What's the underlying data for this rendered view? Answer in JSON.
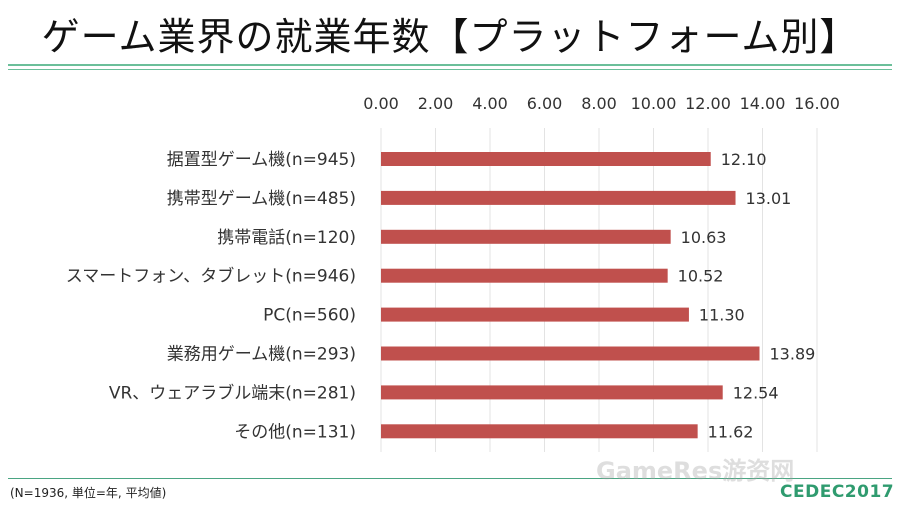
{
  "title": "ゲーム業界の就業年数【プラットフォーム別】",
  "footnote": "(N=1936, 単位=年, 平均値)",
  "watermark": "GameRes游资网",
  "logo": "CEDEC2017",
  "colors": {
    "bar": "#c0504d",
    "rule": "#6bbf9a",
    "grid": "#e3e3e3"
  },
  "chart_data": {
    "type": "bar",
    "orientation": "horizontal",
    "categories": [
      "据置型ゲーム機(n=945)",
      "携帯型ゲーム機(n=485)",
      "携帯電話(n=120)",
      "スマートフォン、タブレット(n=946)",
      "PC(n=560)",
      "業務用ゲーム機(n=293)",
      "VR、ウェアラブル端末(n=281)",
      "その他(n=131)"
    ],
    "values": [
      12.1,
      13.01,
      10.63,
      10.52,
      11.3,
      13.89,
      12.54,
      11.62
    ],
    "value_labels": [
      "12.10",
      "13.01",
      "10.63",
      "10.52",
      "11.30",
      "13.89",
      "12.54",
      "11.62"
    ],
    "ticks": [
      "0.00",
      "2.00",
      "4.00",
      "6.00",
      "8.00",
      "10.00",
      "12.00",
      "14.00",
      "16.00"
    ],
    "xlim": [
      0,
      16
    ],
    "axis_position": "top",
    "grid": true,
    "legend": "none"
  }
}
